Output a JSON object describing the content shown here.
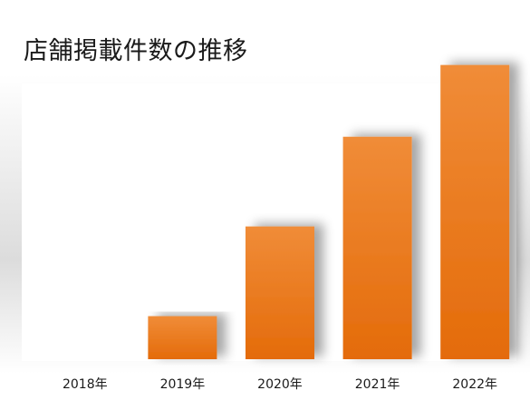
{
  "chart_data": {
    "type": "bar",
    "title": "店舗掲載件数の推移",
    "categories": [
      "2018年",
      "2019年",
      "2020年",
      "2021年",
      "2022年"
    ],
    "values": [
      0,
      12,
      37,
      62,
      82
    ],
    "xlabel": "",
    "ylabel": "",
    "ylim": [
      0,
      90
    ],
    "grid": false,
    "legend": "none",
    "colors": {
      "bar_top": "#f08c38",
      "bar_bottom": "#e46b0a",
      "panel": "#ffffff",
      "panel_shadow": "#d9d9d9"
    }
  }
}
